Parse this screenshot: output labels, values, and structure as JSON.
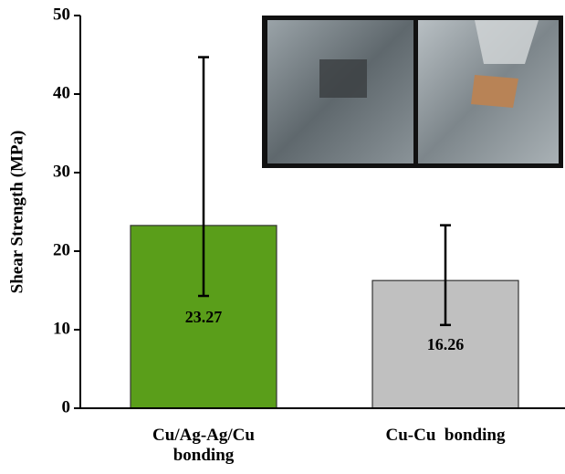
{
  "chart_data": {
    "type": "bar",
    "y_label": "Shear Strength (MPa)",
    "categories": [
      "Cu/Ag-Ag/Cu bonding",
      "Cu-Cu  bonding"
    ],
    "values": [
      23.27,
      16.26
    ],
    "value_labels": [
      "23.27",
      "16.26"
    ],
    "error_low": [
      14.3,
      10.6
    ],
    "error_high": [
      44.7,
      23.3
    ],
    "colors": [
      "#5a9e1a",
      "#c0c0c0"
    ],
    "ylim": [
      0,
      50
    ],
    "yticks": [
      0,
      10,
      20,
      30,
      40,
      50
    ]
  }
}
